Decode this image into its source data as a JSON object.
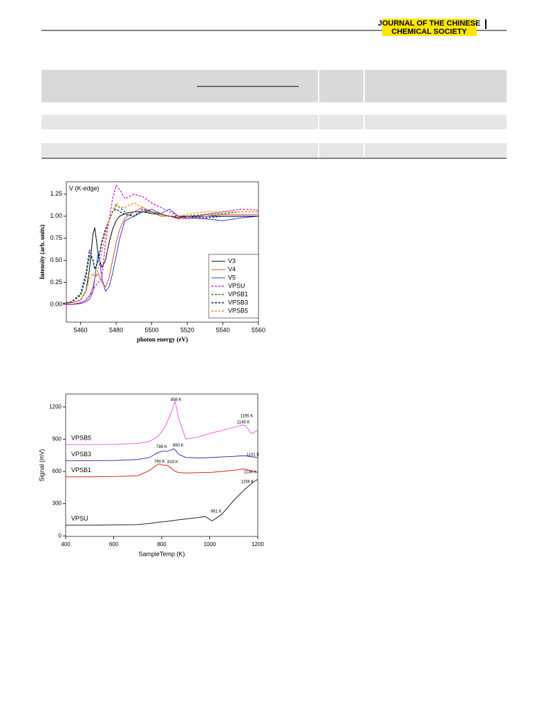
{
  "header": {
    "journal_lines": [
      "JOURNAL OF THE CHINESE",
      "CHEMICAL SOCIETY"
    ]
  },
  "chart_data": [
    {
      "type": "line",
      "annotation": "V (K-edge)",
      "xlabel": "photon energy (eV)",
      "ylabel": "Intensity (arb. units)",
      "legend": "lower right",
      "x": [
        5450,
        5455,
        5460,
        5463,
        5465,
        5467,
        5468,
        5470,
        5472,
        5474,
        5476,
        5478,
        5480,
        5482,
        5485,
        5490,
        5495,
        5500,
        5505,
        5510,
        5515,
        5520,
        5530,
        5540,
        5550,
        5560
      ],
      "series": [
        {
          "name": "V3",
          "color": "#000000",
          "line_style": "solid",
          "values": [
            0.01,
            0.02,
            0.05,
            0.15,
            0.4,
            0.8,
            0.87,
            0.55,
            0.42,
            0.5,
            0.7,
            0.85,
            0.95,
            1.0,
            1.03,
            1.05,
            1.05,
            1.03,
            1.02,
            1.0,
            0.98,
            1.0,
            1.0,
            1.0,
            1.0,
            1.0
          ]
        },
        {
          "name": "V4",
          "color": "#e8452c",
          "line_style": "solid",
          "values": [
            0,
            0,
            0.02,
            0.05,
            0.1,
            0.2,
            0.3,
            0.35,
            0.25,
            0.2,
            0.3,
            0.5,
            0.7,
            0.85,
            0.98,
            1.05,
            1.1,
            1.05,
            1.0,
            1.0,
            0.97,
            0.98,
            1.0,
            1.02,
            1.02,
            1.02
          ]
        },
        {
          "name": "V5",
          "color": "#2a3fd6",
          "line_style": "solid",
          "values": [
            0,
            0,
            0.01,
            0.03,
            0.06,
            0.15,
            0.3,
            0.6,
            0.3,
            0.15,
            0.2,
            0.35,
            0.55,
            0.75,
            0.95,
            1.0,
            1.05,
            1.08,
            1.03,
            1.08,
            1.0,
            0.98,
            0.97,
            0.95,
            0.98,
            1.0
          ]
        },
        {
          "name": "VPSU",
          "color": "#e020e0",
          "line_style": "dashed",
          "values": [
            0,
            0,
            0.02,
            0.05,
            0.1,
            0.15,
            0.2,
            0.25,
            0.3,
            0.7,
            0.95,
            1.2,
            1.35,
            1.3,
            1.2,
            1.25,
            1.22,
            1.15,
            1.1,
            1.05,
            1.0,
            0.97,
            1.02,
            1.05,
            1.08,
            1.07
          ]
        },
        {
          "name": "VPSB1",
          "color": "#1a7a1a",
          "line_style": "dashed",
          "values": [
            0.01,
            0.03,
            0.1,
            0.3,
            0.55,
            0.5,
            0.4,
            0.5,
            0.7,
            0.85,
            0.95,
            1.05,
            1.12,
            1.1,
            1.05,
            1.0,
            1.05,
            1.05,
            1.03,
            1.0,
            1.0,
            1.0,
            1.02,
            1.03,
            1.05,
            1.05
          ]
        },
        {
          "name": "VPSB3",
          "color": "#1a1a8a",
          "line_style": "dashed",
          "values": [
            0.01,
            0.03,
            0.12,
            0.35,
            0.62,
            0.5,
            0.4,
            0.5,
            0.72,
            0.85,
            0.95,
            1.05,
            1.08,
            1.05,
            1.02,
            1.0,
            1.08,
            1.05,
            1.02,
            1.0,
            1.0,
            1.0,
            0.98,
            1.0,
            1.0,
            1.0
          ]
        },
        {
          "name": "VPSB5",
          "color": "#f0901a",
          "line_style": "dashed",
          "values": [
            0,
            0.02,
            0.05,
            0.15,
            0.3,
            0.35,
            0.3,
            0.4,
            0.6,
            0.8,
            0.95,
            1.05,
            1.15,
            1.1,
            1.1,
            1.15,
            1.1,
            1.05,
            1.02,
            1.0,
            1.0,
            1.02,
            1.05,
            1.05,
            1.05,
            1.05
          ]
        }
      ],
      "xlim": [
        5452,
        5560
      ],
      "xticks": [
        5460,
        5480,
        5500,
        5520,
        5540,
        5560
      ],
      "ylim": [
        -0.2,
        1.39
      ],
      "yticks": [
        {
          "value": 0,
          "label": "0.00"
        },
        {
          "value": 0.25,
          "label": "0.25"
        },
        {
          "value": 0.5,
          "label": "0.50"
        },
        {
          "value": 0.75,
          "label": "0.75"
        },
        {
          "value": 1,
          "label": "1.00"
        },
        {
          "value": 1.25,
          "label": "1.25"
        }
      ]
    },
    {
      "type": "line",
      "xlabel": "SampleTemp (K)",
      "ylabel": "Signal (mV)",
      "legend": "inline",
      "x": [
        400,
        500,
        600,
        700,
        750,
        780,
        790,
        810,
        819,
        840,
        850,
        856,
        870,
        900,
        950,
        981,
        1010,
        1050,
        1100,
        1131,
        1138,
        1149,
        1158,
        1170,
        1180,
        1195,
        1200
      ],
      "series": [
        {
          "name": "VPSB5",
          "color": "#f060f0",
          "values": [
            850,
            850,
            852,
            860,
            880,
            920,
            940,
            1000,
            1040,
            1150,
            1220,
            1250,
            1100,
            900,
            920,
            940,
            960,
            980,
            1010,
            1030,
            1030,
            1025,
            1000,
            960,
            955,
            980,
            980
          ]
        },
        {
          "name": "VPSB3",
          "color": "#3030c0",
          "values": [
            700,
            700,
            702,
            710,
            730,
            770,
            780,
            790,
            785,
            800,
            810,
            800,
            760,
            730,
            725,
            727,
            730,
            735,
            740,
            745,
            745,
            745,
            742,
            738,
            735,
            730,
            728
          ]
        },
        {
          "name": "VPSB1",
          "color": "#e02020",
          "values": [
            550,
            550,
            552,
            560,
            610,
            660,
            670,
            655,
            660,
            630,
            610,
            600,
            590,
            585,
            588,
            590,
            592,
            600,
            610,
            620,
            622,
            620,
            615,
            605,
            600,
            595,
            590
          ]
        },
        {
          "name": "VPSU",
          "color": "#222222",
          "values": [
            100,
            100,
            103,
            105,
            115,
            125,
            128,
            132,
            135,
            140,
            143,
            145,
            150,
            158,
            170,
            180,
            140,
            200,
            330,
            400,
            415,
            440,
            455,
            480,
            500,
            520,
            525
          ]
        }
      ],
      "annotations": [
        {
          "text": "856 K",
          "x": 860,
          "y": 1265
        },
        {
          "text": "1195 K",
          "x": 1154,
          "y": 1116
        },
        {
          "text": "1149 K",
          "x": 1140,
          "y": 1058
        },
        {
          "text": "788 K",
          "x": 800,
          "y": 830
        },
        {
          "text": "850 K",
          "x": 869,
          "y": 842
        },
        {
          "text": "1131 K",
          "x": 1180,
          "y": 755
        },
        {
          "text": "790 K",
          "x": 791,
          "y": 690
        },
        {
          "text": "819 K",
          "x": 846,
          "y": 688
        },
        {
          "text": "1138 K",
          "x": 1168,
          "y": 594
        },
        {
          "text": "1158 K",
          "x": 1157,
          "y": 503
        },
        {
          "text": "981 K",
          "x": 1027,
          "y": 226
        }
      ],
      "xlim": [
        400,
        1200
      ],
      "xticks": [
        400,
        600,
        800,
        1000,
        1200
      ],
      "ylim": [
        -5,
        1320
      ],
      "yticks": [
        0,
        300,
        600,
        900,
        1200
      ]
    }
  ]
}
